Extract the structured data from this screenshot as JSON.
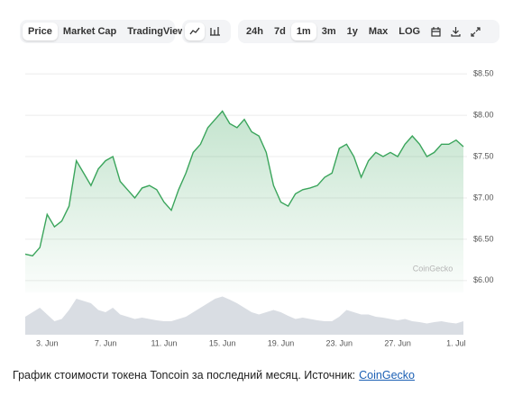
{
  "toolbar": {
    "tabs": [
      "Price",
      "Market Cap",
      "TradingView"
    ],
    "ranges": [
      "24h",
      "7d",
      "1m",
      "3m",
      "1y",
      "Max",
      "LOG"
    ]
  },
  "chart_data": [
    {
      "type": "line",
      "color": "#3ba55c",
      "categories": [
        null,
        null,
        null,
        "3. Jun",
        null,
        null,
        null,
        null,
        null,
        null,
        null,
        "7. Jun",
        null,
        null,
        null,
        null,
        null,
        null,
        null,
        "11. Jun",
        null,
        null,
        null,
        null,
        null,
        null,
        null,
        "15. Jun",
        null,
        null,
        null,
        null,
        null,
        null,
        null,
        "19. Jun",
        null,
        null,
        null,
        null,
        null,
        null,
        null,
        "23. Jun",
        null,
        null,
        null,
        null,
        null,
        null,
        null,
        "27. Jun",
        null,
        null,
        null,
        null,
        null,
        null,
        null,
        "1. Jul",
        null
      ],
      "values": [
        6.32,
        6.3,
        6.4,
        6.8,
        6.65,
        6.72,
        6.9,
        7.45,
        7.3,
        7.15,
        7.35,
        7.45,
        7.5,
        7.2,
        7.1,
        7.0,
        7.12,
        7.15,
        7.1,
        6.95,
        6.85,
        7.1,
        7.3,
        7.55,
        7.65,
        7.85,
        7.95,
        8.05,
        7.9,
        7.85,
        7.95,
        7.8,
        7.75,
        7.55,
        7.15,
        6.95,
        6.9,
        7.05,
        7.1,
        7.12,
        7.15,
        7.25,
        7.3,
        7.6,
        7.65,
        7.5,
        7.25,
        7.45,
        7.55,
        7.5,
        7.55,
        7.5,
        7.65,
        7.75,
        7.65,
        7.5,
        7.55,
        7.65,
        7.65,
        7.7,
        7.62
      ],
      "ylim": [
        5.9,
        8.6
      ],
      "yticks": [
        {
          "value": 6.0,
          "label": "$6.00"
        },
        {
          "value": 6.5,
          "label": "$6.50"
        },
        {
          "value": 7.0,
          "label": "$7.00"
        },
        {
          "value": 7.5,
          "label": "$7.50"
        },
        {
          "value": 8.0,
          "label": "$8.00"
        },
        {
          "value": 8.5,
          "label": "$8.50"
        }
      ],
      "grid": true,
      "watermark": "CoinGecko"
    },
    {
      "type": "area",
      "color": "#d9dde3",
      "values": [
        40,
        50,
        60,
        45,
        30,
        35,
        55,
        80,
        75,
        70,
        55,
        50,
        60,
        45,
        40,
        35,
        38,
        35,
        32,
        30,
        30,
        35,
        40,
        50,
        60,
        70,
        80,
        85,
        78,
        70,
        60,
        50,
        45,
        50,
        55,
        50,
        42,
        35,
        38,
        35,
        32,
        30,
        30,
        40,
        55,
        50,
        45,
        45,
        40,
        38,
        35,
        32,
        35,
        30,
        28,
        25,
        28,
        30,
        27,
        25,
        30
      ],
      "ylim": [
        0,
        100
      ]
    }
  ],
  "caption": {
    "text": "График стоимости токена Toncoin за последний месяц. Источник:",
    "link": "CoinGecko"
  }
}
